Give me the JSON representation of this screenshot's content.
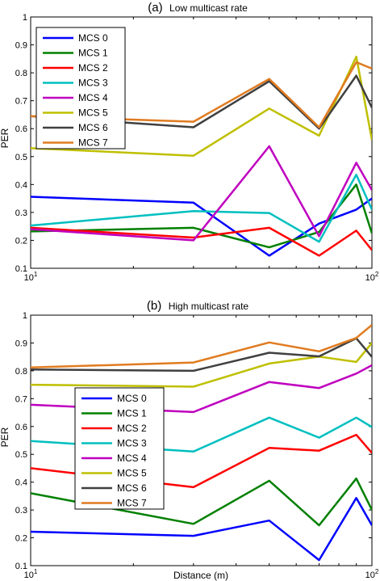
{
  "chart_data": [
    {
      "type": "line",
      "title": "(a) Low multicast rate",
      "title_prefix": "(a)",
      "title_text": "Low multicast rate",
      "xlabel": "",
      "ylabel": "PER",
      "xscale": "log",
      "xlim": [
        10,
        100
      ],
      "ylim": [
        0.1,
        1.0
      ],
      "x_tick_labels": [
        "10",
        "10"
      ],
      "x_tick_exponents": [
        "1",
        "2"
      ],
      "y_ticks": [
        "0.1",
        "0.2",
        "0.3",
        "0.4",
        "0.5",
        "0.6",
        "0.7",
        "0.8",
        "0.9",
        "1"
      ],
      "grid": false,
      "legend_position": "top-left",
      "x": [
        10,
        30,
        50,
        70,
        90,
        100
      ],
      "series": [
        {
          "name": "MCS 0",
          "color": "#0000ff",
          "values": [
            0.356,
            0.335,
            0.145,
            0.26,
            0.31,
            0.35
          ]
        },
        {
          "name": "MCS 1",
          "color": "#008000",
          "values": [
            0.232,
            0.245,
            0.175,
            0.23,
            0.4,
            0.225
          ]
        },
        {
          "name": "MCS 2",
          "color": "#ff0000",
          "values": [
            0.245,
            0.21,
            0.245,
            0.145,
            0.235,
            0.165
          ]
        },
        {
          "name": "MCS 3",
          "color": "#00bfbf",
          "values": [
            0.253,
            0.305,
            0.298,
            0.195,
            0.435,
            0.31
          ]
        },
        {
          "name": "MCS 4",
          "color": "#bf00bf",
          "values": [
            0.24,
            0.2,
            0.537,
            0.215,
            0.478,
            0.38
          ]
        },
        {
          "name": "MCS 5",
          "color": "#bfbf00",
          "values": [
            0.53,
            0.503,
            0.672,
            0.575,
            0.858,
            0.56
          ]
        },
        {
          "name": "MCS 6",
          "color": "#404040",
          "values": [
            0.645,
            0.605,
            0.77,
            0.6,
            0.79,
            0.675
          ]
        },
        {
          "name": "MCS 7",
          "color": "#e07b20",
          "values": [
            0.645,
            0.625,
            0.778,
            0.605,
            0.838,
            0.815
          ]
        }
      ]
    },
    {
      "type": "line",
      "title": "(b) High multicast rate",
      "title_prefix": "(b)",
      "title_text": "High multicast rate",
      "xlabel": "Distance (m)",
      "ylabel": "PER",
      "xscale": "log",
      "xlim": [
        10,
        100
      ],
      "ylim": [
        0.1,
        1.0
      ],
      "x_tick_labels": [
        "10",
        "10"
      ],
      "x_tick_exponents": [
        "1",
        "2"
      ],
      "y_ticks": [
        "0.1",
        "0.2",
        "0.3",
        "0.4",
        "0.5",
        "0.6",
        "0.7",
        "0.8",
        "0.9",
        "1"
      ],
      "grid": false,
      "legend_position": "center-left",
      "x": [
        10,
        30,
        50,
        70,
        90,
        100
      ],
      "series": [
        {
          "name": "MCS 0",
          "color": "#0000ff",
          "values": [
            0.222,
            0.207,
            0.262,
            0.12,
            0.343,
            0.245
          ]
        },
        {
          "name": "MCS 1",
          "color": "#008000",
          "values": [
            0.36,
            0.25,
            0.405,
            0.245,
            0.413,
            0.3
          ]
        },
        {
          "name": "MCS 2",
          "color": "#ff0000",
          "values": [
            0.45,
            0.382,
            0.523,
            0.513,
            0.57,
            0.505
          ]
        },
        {
          "name": "MCS 3",
          "color": "#00bfbf",
          "values": [
            0.548,
            0.51,
            0.632,
            0.56,
            0.632,
            0.598
          ]
        },
        {
          "name": "MCS 4",
          "color": "#bf00bf",
          "values": [
            0.678,
            0.652,
            0.76,
            0.738,
            0.79,
            0.82
          ]
        },
        {
          "name": "MCS 5",
          "color": "#bfbf00",
          "values": [
            0.75,
            0.743,
            0.826,
            0.851,
            0.832,
            0.9
          ]
        },
        {
          "name": "MCS 6",
          "color": "#404040",
          "values": [
            0.805,
            0.8,
            0.865,
            0.852,
            0.917,
            0.85
          ]
        },
        {
          "name": "MCS 7",
          "color": "#e07b20",
          "values": [
            0.812,
            0.83,
            0.902,
            0.87,
            0.918,
            0.965
          ]
        }
      ]
    }
  ]
}
